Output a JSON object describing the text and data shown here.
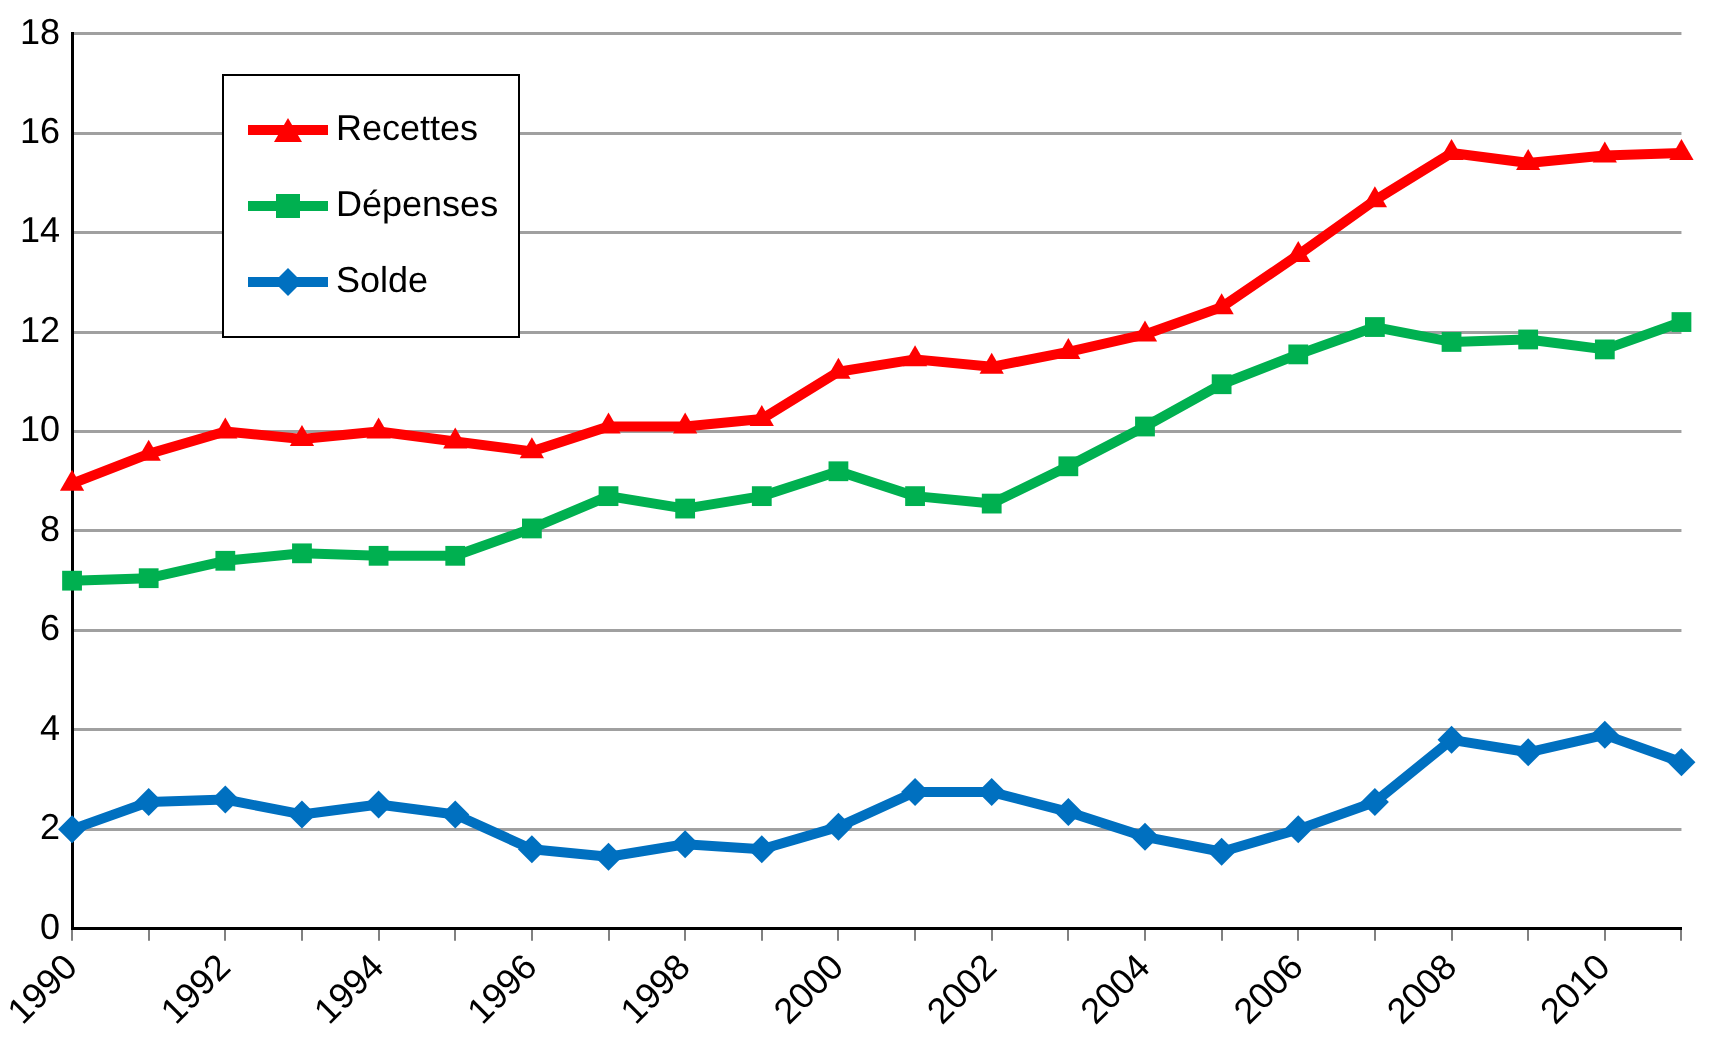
{
  "chart_data": {
    "type": "line",
    "x": [
      1990,
      1991,
      1992,
      1993,
      1994,
      1995,
      1996,
      1997,
      1998,
      1999,
      2000,
      2001,
      2002,
      2003,
      2004,
      2005,
      2006,
      2007,
      2008,
      2009,
      2010,
      2011
    ],
    "series": [
      {
        "name": "Recettes",
        "color": "#ff0000",
        "marker": "triangle",
        "values": [
          8.95,
          9.55,
          10.0,
          9.85,
          10.0,
          9.8,
          9.6,
          10.1,
          10.1,
          10.25,
          11.2,
          11.45,
          11.3,
          11.6,
          11.95,
          12.5,
          13.55,
          14.65,
          15.6,
          15.4,
          15.55,
          15.6
        ]
      },
      {
        "name": "Dépenses",
        "color": "#00b050",
        "marker": "square",
        "values": [
          7.0,
          7.05,
          7.4,
          7.55,
          7.5,
          7.5,
          8.05,
          8.7,
          8.45,
          8.7,
          9.2,
          8.7,
          8.55,
          9.3,
          10.1,
          10.95,
          11.55,
          12.1,
          11.8,
          11.85,
          11.65,
          12.2
        ]
      },
      {
        "name": "Solde",
        "color": "#0070c0",
        "marker": "diamond",
        "values": [
          2.0,
          2.55,
          2.6,
          2.3,
          2.5,
          2.3,
          1.6,
          1.45,
          1.7,
          1.6,
          2.05,
          2.75,
          2.75,
          2.35,
          1.85,
          1.55,
          2.0,
          2.55,
          3.8,
          3.55,
          3.9,
          3.35
        ]
      }
    ],
    "xlim": [
      1990,
      2011
    ],
    "xticks": [
      1990,
      {
        "value": 1991,
        "label": null
      },
      1992,
      {
        "value": 1993,
        "label": null
      },
      1994,
      {
        "value": 1995,
        "label": null
      },
      1996,
      {
        "value": 1997,
        "label": null
      },
      1998,
      {
        "value": 1999,
        "label": null
      },
      2000,
      {
        "value": 2001,
        "label": null
      },
      2002,
      {
        "value": 2003,
        "label": null
      },
      2004,
      {
        "value": 2005,
        "label": null
      },
      2006,
      {
        "value": 2007,
        "label": null
      },
      2008,
      {
        "value": 2009,
        "label": null
      },
      2010,
      {
        "value": 2011,
        "label": null
      }
    ],
    "ylim": [
      0,
      18
    ],
    "yticks": [
      0,
      2,
      4,
      6,
      8,
      10,
      12,
      14,
      16,
      18
    ],
    "grid": "y",
    "legend": "top left",
    "line_style": "solid"
  }
}
